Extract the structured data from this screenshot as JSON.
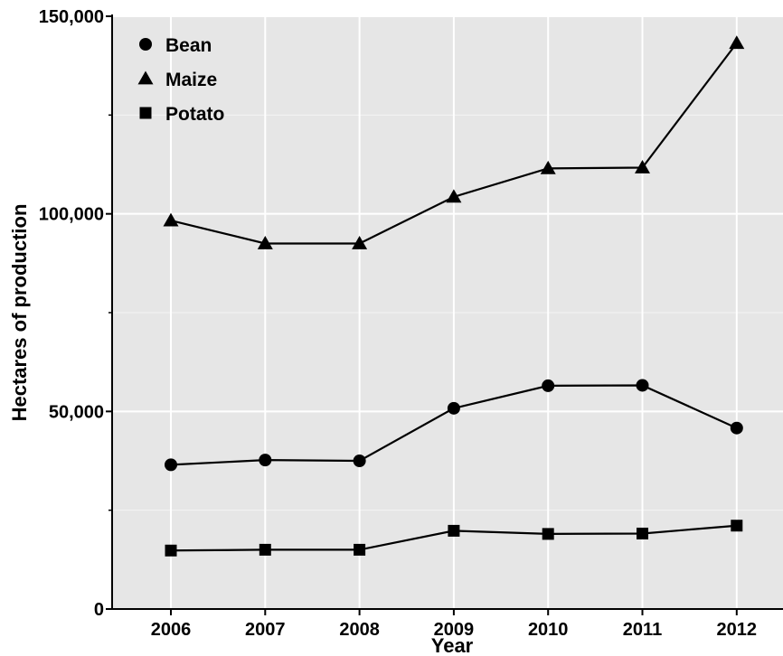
{
  "chart_data": {
    "type": "line",
    "title": "",
    "xlabel": "Year",
    "ylabel": "Hectares of production",
    "categories": [
      "2006",
      "2007",
      "2008",
      "2009",
      "2010",
      "2011",
      "2012"
    ],
    "ylim": [
      0,
      150000
    ],
    "y_ticks": [
      0,
      50000,
      100000,
      150000
    ],
    "y_tick_labels": [
      "0",
      "50,000",
      "100,000",
      "150,000"
    ],
    "grid": true,
    "legend_position": "top-left",
    "series": [
      {
        "name": "Bean",
        "marker": "circle",
        "values": [
          36500,
          37700,
          37500,
          50800,
          56500,
          56600,
          45800
        ]
      },
      {
        "name": "Maize",
        "marker": "triangle",
        "values": [
          98300,
          92500,
          92500,
          104300,
          111500,
          111700,
          143200
        ]
      },
      {
        "name": "Potato",
        "marker": "square",
        "values": [
          14800,
          15000,
          15000,
          19800,
          19000,
          19100,
          21100
        ]
      }
    ],
    "colors": {
      "background": "#e6e6e6",
      "grid": "#ffffff",
      "line": "#000000"
    }
  }
}
